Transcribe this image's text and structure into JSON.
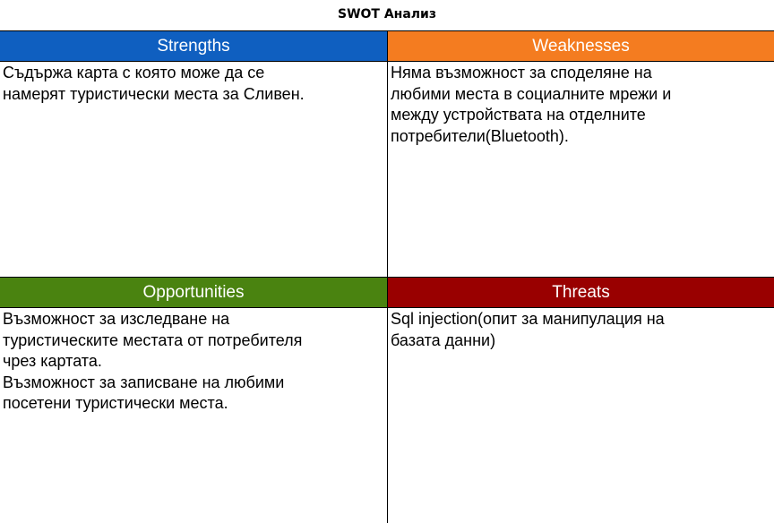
{
  "title": "SWOT Анализ",
  "colors": {
    "strengths": "#0f5fc0",
    "weaknesses": "#f47c20",
    "opportunities": "#4a8310",
    "threats": "#990000"
  },
  "quadrants": {
    "strengths": {
      "label": "Strengths",
      "text": "Съдържа карта с която може да се\nнамерят туристически места за Сливен."
    },
    "weaknesses": {
      "label": "Weaknesses",
      "text": "Няма възможност за споделяне на\nлюбими места в социалните мрежи и\nмежду устройствата на отделните\nпотребители(Bluetooth)."
    },
    "opportunities": {
      "label": "Opportunities",
      "text": "Възможност за изследване на\nтуристическите  местата от потребителя\nчрез картата.\nВъзможност за записване на любими\nпосетени туристически  места."
    },
    "threats": {
      "label": "Threats",
      "text": "Sql injection(опит за манипулация на\nбазата данни)"
    }
  }
}
